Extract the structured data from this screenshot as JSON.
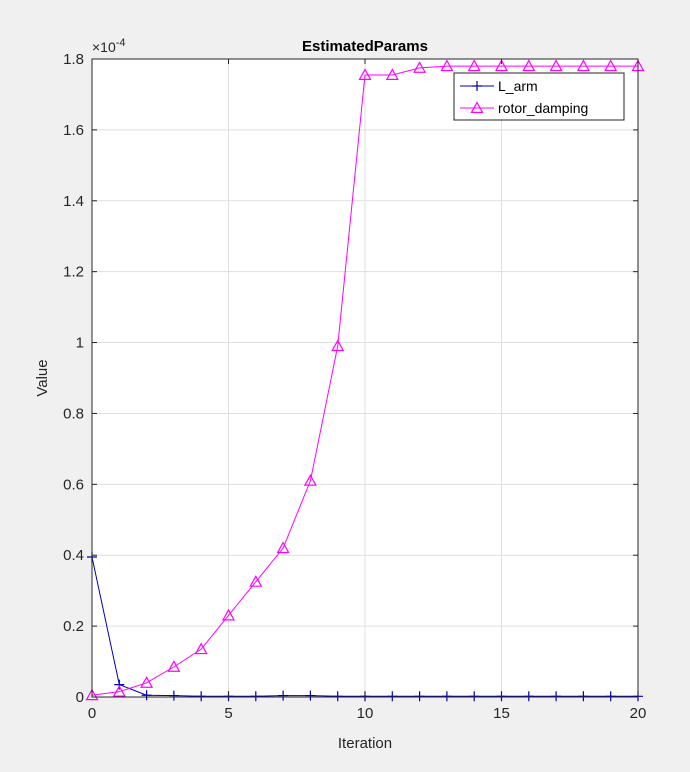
{
  "chart_data": {
    "type": "line",
    "title": "EstimatedParams",
    "xlabel": "Iteration",
    "ylabel": "Value",
    "xlim": [
      0,
      20
    ],
    "ylim": [
      0,
      1.8
    ],
    "y_exponent_label": "×10",
    "y_exponent_power": "-4",
    "x_ticks": [
      "0",
      "5",
      "10",
      "15",
      "20"
    ],
    "y_ticks": [
      "0",
      "0.2",
      "0.4",
      "0.6",
      "0.8",
      "1",
      "1.2",
      "1.4",
      "1.6",
      "1.8"
    ],
    "grid": true,
    "legend_position": "top-right",
    "x": [
      0,
      1,
      2,
      3,
      4,
      5,
      6,
      7,
      8,
      9,
      10,
      11,
      12,
      13,
      14,
      15,
      16,
      17,
      18,
      19,
      20
    ],
    "series": [
      {
        "name": "L_arm",
        "color": "#0000b4",
        "marker": "plus",
        "values": [
          0.395,
          0.035,
          0.005,
          0.004,
          0.002,
          0.002,
          0.002,
          0.004,
          0.004,
          0.002,
          0.002,
          0.002,
          0.002,
          0.002,
          0.002,
          0.002,
          0.002,
          0.002,
          0.002,
          0.002,
          0.002
        ]
      },
      {
        "name": "rotor_damping",
        "color": "#ff00ff",
        "marker": "triangle",
        "values": [
          0.005,
          0.015,
          0.04,
          0.085,
          0.135,
          0.23,
          0.325,
          0.42,
          0.61,
          0.99,
          1.755,
          1.755,
          1.775,
          1.78,
          1.78,
          1.78,
          1.78,
          1.78,
          1.78,
          1.78,
          1.78
        ]
      }
    ]
  }
}
